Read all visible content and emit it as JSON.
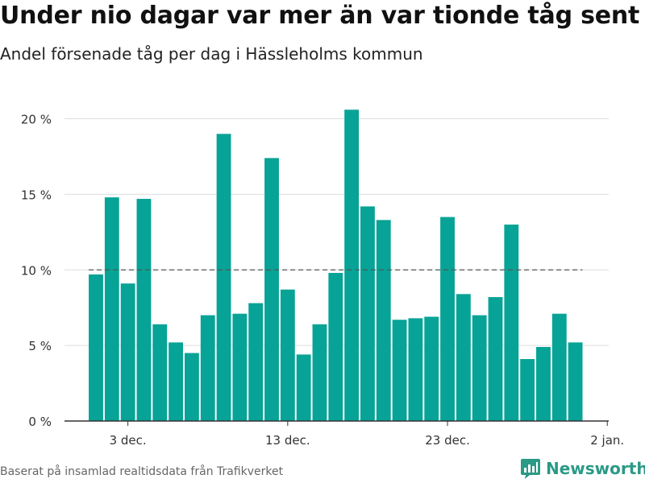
{
  "header": {
    "title": "Under nio dagar var mer än var tionde tåg sent",
    "subtitle": "Andel försenade tåg per dag i Hässleholms kommun"
  },
  "footer": {
    "source": "Baserat på insamlad realtidsdata från Trafikverket",
    "brand": "Newsworthy"
  },
  "colors": {
    "bar": "#06a396",
    "reference_line": "#555555",
    "grid": "#dddddd",
    "axis": "#333333",
    "brand": "#2a9a86"
  },
  "icons": {
    "logo": "newsworthy-chart-icon"
  },
  "chart_data": {
    "type": "bar",
    "title": "Under nio dagar var mer än var tionde tåg sent",
    "subtitle": "Andel försenade tåg per dag i Hässleholms kommun",
    "x": [
      "2023-12-01",
      "2023-12-02",
      "2023-12-03",
      "2023-12-04",
      "2023-12-05",
      "2023-12-06",
      "2023-12-07",
      "2023-12-08",
      "2023-12-09",
      "2023-12-10",
      "2023-12-11",
      "2023-12-12",
      "2023-12-13",
      "2023-12-14",
      "2023-12-15",
      "2023-12-16",
      "2023-12-17",
      "2023-12-18",
      "2023-12-19",
      "2023-12-20",
      "2023-12-21",
      "2023-12-22",
      "2023-12-23",
      "2023-12-24",
      "2023-12-25",
      "2023-12-26",
      "2023-12-27",
      "2023-12-28",
      "2023-12-29",
      "2023-12-30",
      "2023-12-31"
    ],
    "values": [
      9.7,
      14.8,
      9.1,
      14.7,
      6.4,
      5.2,
      4.5,
      7.0,
      19.0,
      7.1,
      7.8,
      17.4,
      8.7,
      4.4,
      6.4,
      9.8,
      20.6,
      14.2,
      13.3,
      6.7,
      6.8,
      6.9,
      13.5,
      8.4,
      7.0,
      8.2,
      13.0,
      4.1,
      4.9,
      7.1,
      5.2
    ],
    "y_unit": "%",
    "ylim": [
      0,
      22
    ],
    "y_ticks": [
      0,
      5,
      10,
      15,
      20
    ],
    "y_tick_labels": [
      "0 %",
      "5 %",
      "10 %",
      "15 %",
      "20 %"
    ],
    "x_ticks": [
      "2023-12-03",
      "2023-12-13",
      "2023-12-23",
      "2024-01-02"
    ],
    "x_tick_labels": [
      "3 dec.",
      "13 dec.",
      "23 dec.",
      "2 jan."
    ],
    "reference_line": {
      "value": 10,
      "style": "dashed"
    },
    "grid": true,
    "legend": "none"
  }
}
